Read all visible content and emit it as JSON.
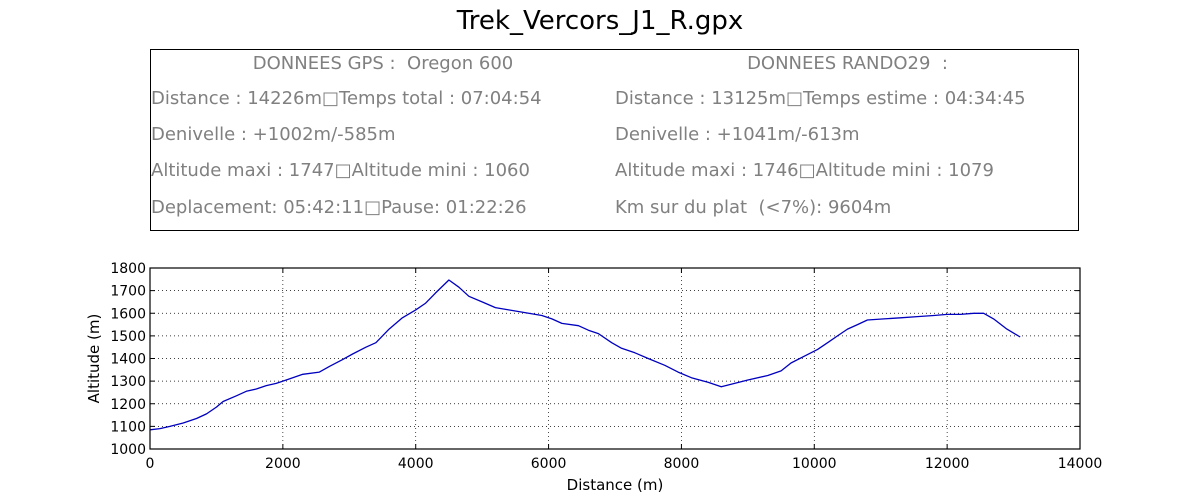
{
  "title": "Trek_Vercors_J1_R.gpx",
  "info": {
    "gps": {
      "header": "DONNEES GPS :  Oregon 600",
      "lines": [
        "Distance : 14226m□Temps total : 07:04:54",
        "Denivelle : +1002m/-585m",
        "Altitude maxi : 1747□Altitude mini : 1060",
        "Deplacement: 05:42:11□Pause: 01:22:26"
      ]
    },
    "rando": {
      "header": "DONNEES RANDO29  :",
      "lines": [
        "Distance : 13125m□Temps estime : 04:34:45",
        "Denivelle : +1041m/-613m",
        "Altitude maxi : 1746□Altitude mini : 1079",
        "Km sur du plat  (<7%): 9604m"
      ]
    }
  },
  "chart_data": {
    "type": "line",
    "xlabel": "Distance (m)",
    "ylabel": "Altitude (m)",
    "xlim": [
      0,
      14000
    ],
    "ylim": [
      1000,
      1800
    ],
    "xticks": [
      0,
      2000,
      4000,
      6000,
      8000,
      10000,
      12000,
      14000
    ],
    "yticks": [
      1000,
      1100,
      1200,
      1300,
      1400,
      1500,
      1600,
      1700,
      1800
    ],
    "grid": true,
    "line_color": "#0000bf",
    "series": [
      {
        "x": [
          0,
          150,
          300,
          500,
          700,
          850,
          1000,
          1100,
          1300,
          1450,
          1600,
          1750,
          1900,
          2100,
          2300,
          2550,
          2700,
          2900,
          3050,
          3250,
          3400,
          3600,
          3800,
          4000,
          4150,
          4300,
          4500,
          4650,
          4800,
          5000,
          5200,
          5400,
          5600,
          5900,
          6050,
          6200,
          6450,
          6600,
          6750,
          6950,
          7100,
          7300,
          7500,
          7750,
          7950,
          8150,
          8400,
          8600,
          8800,
          9000,
          9300,
          9500,
          9650,
          9850,
          10050,
          10200,
          10350,
          10500,
          10650,
          10800,
          11050,
          11300,
          11550,
          11800,
          12000,
          12200,
          12400,
          12550,
          12700,
          12900,
          13100
        ],
        "y": [
          1085,
          1090,
          1100,
          1115,
          1135,
          1155,
          1185,
          1210,
          1235,
          1255,
          1265,
          1280,
          1290,
          1310,
          1330,
          1340,
          1365,
          1395,
          1420,
          1450,
          1470,
          1530,
          1580,
          1615,
          1645,
          1690,
          1747,
          1715,
          1675,
          1650,
          1625,
          1615,
          1605,
          1590,
          1575,
          1555,
          1545,
          1525,
          1510,
          1470,
          1445,
          1425,
          1400,
          1370,
          1340,
          1315,
          1295,
          1275,
          1290,
          1305,
          1325,
          1345,
          1380,
          1410,
          1440,
          1470,
          1500,
          1530,
          1550,
          1570,
          1575,
          1580,
          1585,
          1590,
          1595,
          1595,
          1600,
          1600,
          1575,
          1530,
          1495
        ]
      }
    ]
  }
}
